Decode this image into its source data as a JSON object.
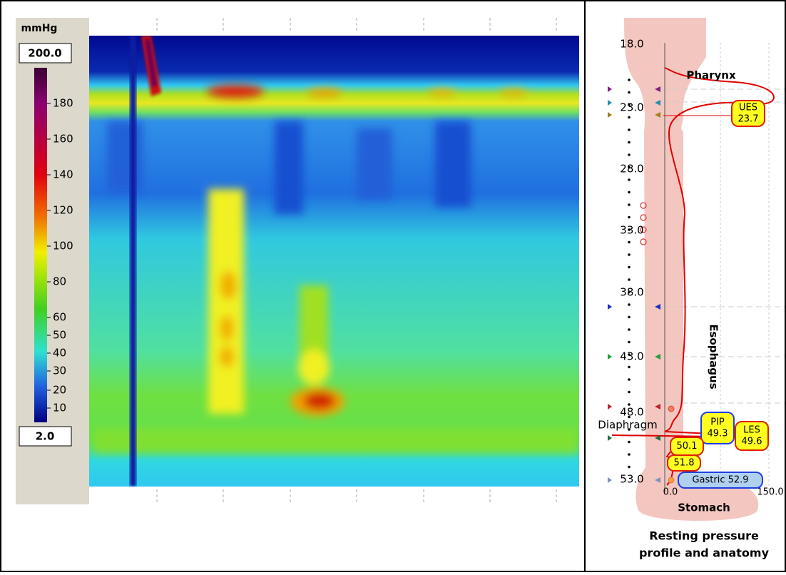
{
  "colorbar": {
    "unit": "mmHg",
    "max": "200.0",
    "min": "2.0",
    "ticks": [
      "180",
      "160",
      "140",
      "120",
      "100",
      "80",
      "60",
      "50",
      "40",
      "30",
      "20",
      "10"
    ]
  },
  "profile": {
    "depths": [
      "18.0",
      "23.0",
      "28.0",
      "33.0",
      "38.0",
      "43.0",
      "48.0",
      "53.0"
    ],
    "x_axis": [
      "0.0",
      "150.0"
    ],
    "regions": {
      "pharynx": "Pharynx",
      "esophagus": "Esophagus",
      "diaphragm": "Diaphragm",
      "stomach": "Stomach"
    },
    "markers": [
      {
        "lines": [
          "UES",
          "23.7"
        ]
      },
      {
        "lines": [
          "PIP",
          "49.3"
        ]
      },
      {
        "lines": [
          "LES",
          "49.6"
        ]
      },
      {
        "lines": [
          "50.1"
        ]
      },
      {
        "lines": [
          "51.8"
        ]
      },
      {
        "lines": [
          "Gastric 52.9"
        ]
      }
    ],
    "caption": [
      "Resting pressure",
      "profile and anatomy"
    ]
  }
}
